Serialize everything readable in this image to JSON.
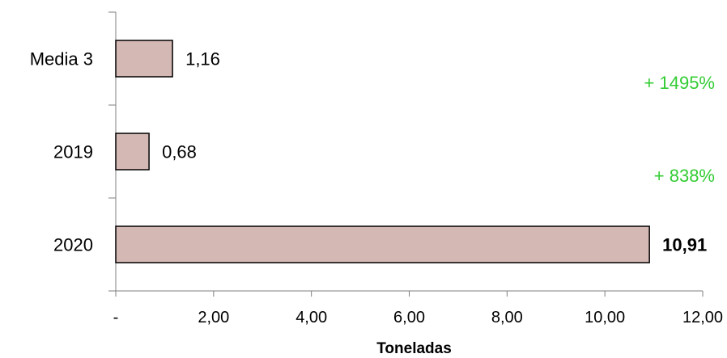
{
  "chart_data": {
    "type": "bar",
    "orientation": "horizontal",
    "categories": [
      "Media 3",
      "2019",
      "2020"
    ],
    "values": [
      1.16,
      0.68,
      10.91
    ],
    "value_labels": [
      "1,16",
      "0,68",
      "10,91"
    ],
    "highlight_label_index": 2,
    "xlabel": "Toneladas",
    "xlim": [
      0,
      12
    ],
    "x_ticks": [
      0,
      2,
      4,
      6,
      8,
      10,
      12
    ],
    "x_tick_labels": [
      "-",
      "2,00",
      "4,00",
      "6,00",
      "8,00",
      "10,00",
      "12,00"
    ],
    "bar_color": "#d4b8b4",
    "bar_edge_color": "#000000",
    "grid": false,
    "annotations": [
      {
        "text": "+ 1495%",
        "color": "#33cc33",
        "between": [
          "Media 3",
          "2019"
        ]
      },
      {
        "text": "+ 838%",
        "color": "#33cc33",
        "between": [
          "2019",
          "2020"
        ]
      }
    ]
  }
}
